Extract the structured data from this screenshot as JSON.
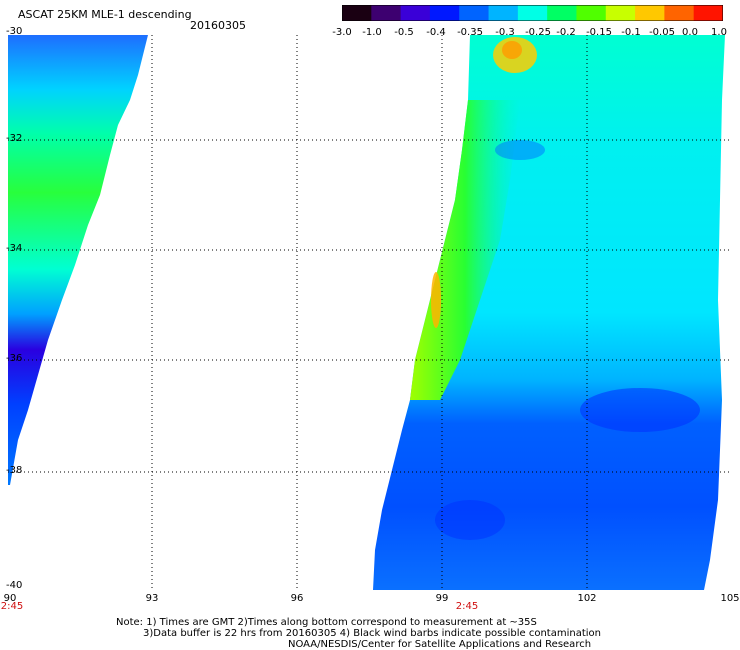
{
  "header": {
    "title": "ASCAT 25KM MLE-1 descending",
    "date": "20160305"
  },
  "colorbar": {
    "labels": [
      "-3.0",
      "-1.0",
      "-0.5",
      "-0.4",
      "-0.35",
      "-0.3",
      "-0.25",
      "-0.2",
      "-0.15",
      "-0.1",
      "-0.05",
      "0.0",
      "1.0"
    ],
    "colors": [
      "#1a0012",
      "#3d0070",
      "#3a00d8",
      "#0018ff",
      "#0064ff",
      "#00b4ff",
      "#00ffe6",
      "#00ff64",
      "#50ff00",
      "#c8ff00",
      "#ffc800",
      "#ff6400",
      "#ff1400"
    ]
  },
  "axes": {
    "lat_labels": [
      "-30",
      "-32",
      "-34",
      "-36",
      "-38",
      "-40"
    ],
    "lon_labels": [
      "90",
      "93",
      "96",
      "99",
      "102",
      "105"
    ],
    "time_labels": [
      "2:45",
      "2:45"
    ]
  },
  "notes": {
    "line1": "Note: 1) Times are GMT 2)Times along bottom correspond to measurement at ~35S",
    "line2": "3)Data buffer is 22 hrs from 20160305 4) Black wind barbs indicate possible contamination",
    "line3": "NOAA/NESDIS/Center for Satellite Applications and Research"
  }
}
